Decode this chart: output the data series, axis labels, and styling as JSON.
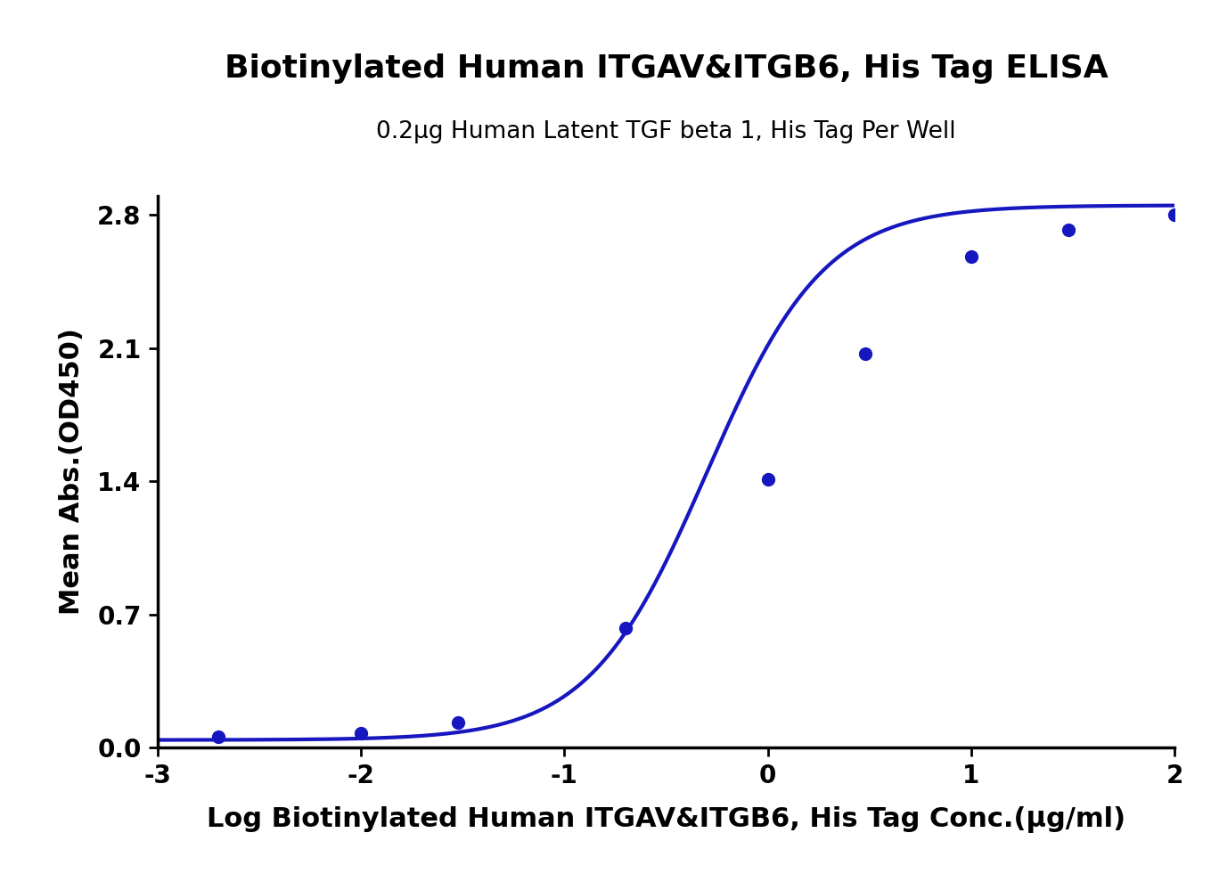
{
  "title_line1": "Biotinylated Human ITGAV&ITGB6, His Tag ELISA",
  "title_line2": "0.2μg Human Latent TGF beta 1, His Tag Per Well",
  "xlabel": "Log Biotinylated Human ITGAV&ITGB6, His Tag Conc.(μg/ml)",
  "ylabel": "Mean Abs.(OD450)",
  "x_data": [
    -2.699,
    -2.0,
    -1.523,
    -0.699,
    0.0,
    0.477,
    1.0,
    1.477,
    2.0
  ],
  "y_data": [
    0.055,
    0.075,
    0.13,
    0.63,
    1.41,
    2.07,
    2.58,
    2.72,
    2.8
  ],
  "xlim": [
    -3.0,
    2.0
  ],
  "ylim": [
    0.0,
    2.9
  ],
  "yticks": [
    0.0,
    0.7,
    1.4,
    2.1,
    2.8
  ],
  "xticks": [
    -3,
    -2,
    -1,
    0,
    1,
    2
  ],
  "line_color": "#1717c0",
  "marker_color": "#1717c0",
  "title_fontsize": 26,
  "subtitle_fontsize": 19,
  "axis_label_fontsize": 22,
  "tick_fontsize": 20,
  "background_color": "#ffffff"
}
